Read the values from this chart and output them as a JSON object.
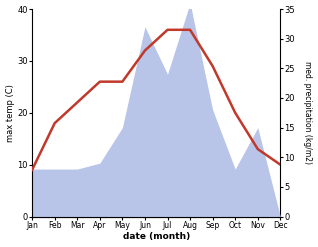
{
  "months": [
    "Jan",
    "Feb",
    "Mar",
    "Apr",
    "May",
    "Jun",
    "Jul",
    "Aug",
    "Sep",
    "Oct",
    "Nov",
    "Dec"
  ],
  "month_x": [
    1,
    2,
    3,
    4,
    5,
    6,
    7,
    8,
    9,
    10,
    11,
    12
  ],
  "temperature": [
    9,
    18,
    22,
    26,
    26,
    32,
    36,
    36,
    29,
    20,
    13,
    10
  ],
  "precipitation": [
    8,
    8,
    8,
    9,
    15,
    32,
    24,
    36,
    18,
    8,
    15,
    0
  ],
  "temp_color": "#c0392b",
  "precip_color": "#b8c4e8",
  "temp_ylim": [
    0,
    40
  ],
  "precip_ylim": [
    0,
    35
  ],
  "temp_yticks": [
    0,
    10,
    20,
    30,
    40
  ],
  "precip_yticks": [
    0,
    5,
    10,
    15,
    20,
    25,
    30,
    35
  ],
  "xlabel": "date (month)",
  "ylabel_left": "max temp (C)",
  "ylabel_right": "med. precipitation (kg/m2)",
  "bg_color": "#ffffff",
  "figsize": [
    3.18,
    2.47
  ],
  "dpi": 100
}
